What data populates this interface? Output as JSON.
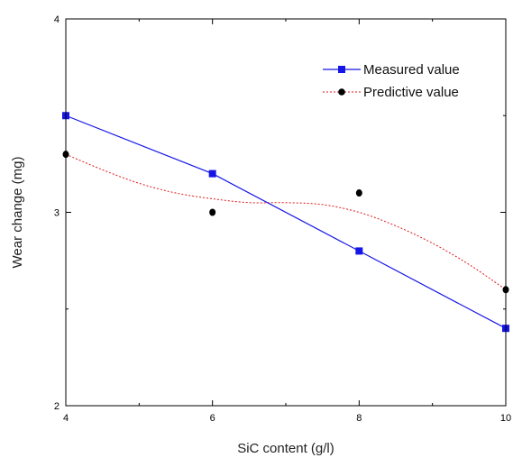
{
  "chart_data": {
    "type": "line",
    "xlabel": "SiC content (g/l)",
    "ylabel": "Wear change (mg)",
    "xlim": [
      4,
      10
    ],
    "ylim": [
      2,
      4
    ],
    "x_ticks": [
      4,
      6,
      8,
      10
    ],
    "x_tick_labels": [
      "4",
      "6",
      "8",
      "10"
    ],
    "y_ticks": [
      2,
      3,
      4
    ],
    "y_tick_labels": [
      "2",
      "3",
      "4"
    ],
    "x_minor_step": 1,
    "y_minor_step": 0.5,
    "grid": false,
    "legend_position": "top-right",
    "series": [
      {
        "name": "Measured value",
        "style": "solid-line-square-markers",
        "color": "#1515e6",
        "x": [
          4,
          6,
          8,
          10
        ],
        "y": [
          3.5,
          3.2,
          2.8,
          2.4
        ]
      },
      {
        "name": "Predictive value",
        "style": "points-with-dotted-smooth-fit",
        "color": "#000000",
        "fit_color": "#e01818",
        "x": [
          4,
          6,
          8,
          10
        ],
        "y": [
          3.3,
          3.0,
          3.1,
          2.6
        ],
        "fit_curve": {
          "x": [
            4,
            4.5,
            5,
            5.5,
            6,
            6.5,
            7,
            7.5,
            8,
            8.5,
            9,
            9.5,
            10
          ],
          "y": [
            3.3,
            3.22,
            3.15,
            3.1,
            3.07,
            3.05,
            3.05,
            3.04,
            3.0,
            2.93,
            2.84,
            2.73,
            2.6
          ]
        }
      }
    ]
  }
}
